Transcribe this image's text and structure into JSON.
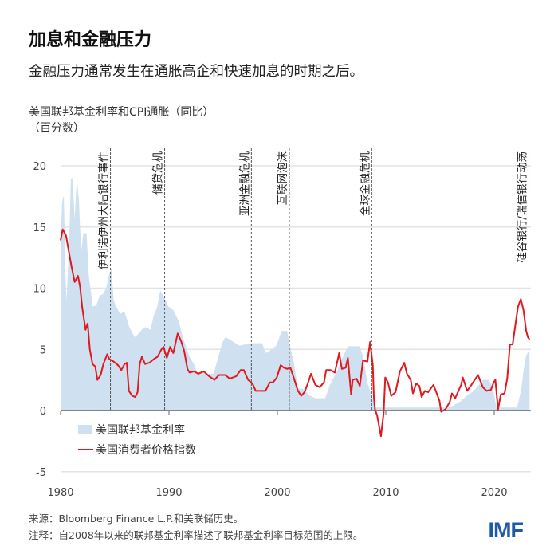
{
  "header": {
    "title": "加息和金融压力",
    "subtitle": "金融压力通常发生在通胀高企和快速加息的时期之后。"
  },
  "footer": {
    "source": "来源：Bloomberg Finance L.P.和美联储历史。",
    "note": "注释：自2008年以来的联邦基金利率描述了联邦基金利率目标范围的上限。",
    "logo": "IMF"
  },
  "chart_data": {
    "type": "area+line",
    "ylabel": "美国联邦基金利率和CPI通胀（同比）",
    "yunit": "（百分数）",
    "xlim": [
      1980,
      2023.3
    ],
    "ylim": [
      -5,
      20
    ],
    "xticks": [
      "1980",
      "1990",
      "2000",
      "2010",
      "2020"
    ],
    "yticks": [
      "20",
      "15",
      "10",
      "5",
      "0",
      "-5"
    ],
    "grid": true,
    "legend_position": "bottom-left",
    "colors": {
      "fed_funds": "#cfe1f0",
      "cpi": "#e0191f"
    },
    "series": [
      {
        "name": "美国联邦基金利率",
        "kind": "area",
        "points": [
          [
            1980.0,
            14
          ],
          [
            1980.15,
            17
          ],
          [
            1980.3,
            17.6
          ],
          [
            1980.45,
            11
          ],
          [
            1980.55,
            9
          ],
          [
            1980.8,
            14
          ],
          [
            1980.95,
            18.9
          ],
          [
            1981.1,
            19
          ],
          [
            1981.3,
            15.7
          ],
          [
            1981.5,
            19.1
          ],
          [
            1981.7,
            17
          ],
          [
            1981.9,
            13
          ],
          [
            1982.1,
            14.5
          ],
          [
            1982.4,
            14.5
          ],
          [
            1982.6,
            11
          ],
          [
            1982.8,
            9.7
          ],
          [
            1982.95,
            8.5
          ],
          [
            1983.3,
            8.6
          ],
          [
            1983.6,
            9.4
          ],
          [
            1983.9,
            9.5
          ],
          [
            1984.2,
            10
          ],
          [
            1984.5,
            11.2
          ],
          [
            1984.7,
            11.6
          ],
          [
            1984.9,
            9
          ],
          [
            1985.1,
            8.5
          ],
          [
            1985.5,
            7.9
          ],
          [
            1985.9,
            8.1
          ],
          [
            1986.3,
            6.9
          ],
          [
            1986.7,
            6.2
          ],
          [
            1986.9,
            6
          ],
          [
            1987.3,
            6.4
          ],
          [
            1987.7,
            6.8
          ],
          [
            1987.9,
            6.8
          ],
          [
            1988.3,
            6.6
          ],
          [
            1988.6,
            7.8
          ],
          [
            1988.9,
            8.4
          ],
          [
            1989.2,
            9.8
          ],
          [
            1989.4,
            9.5
          ],
          [
            1989.7,
            9
          ],
          [
            1989.95,
            8.5
          ],
          [
            1990.4,
            8.2
          ],
          [
            1990.9,
            7.3
          ],
          [
            1991.3,
            5.9
          ],
          [
            1991.9,
            4.4
          ],
          [
            1992.3,
            3.8
          ],
          [
            1992.6,
            3.1
          ],
          [
            1993.5,
            3
          ],
          [
            1994.1,
            3
          ],
          [
            1994.5,
            4.2
          ],
          [
            1994.9,
            5.5
          ],
          [
            1995.2,
            6
          ],
          [
            1995.6,
            5.8
          ],
          [
            1996.5,
            5.3
          ],
          [
            1997.5,
            5.5
          ],
          [
            1998.6,
            5.5
          ],
          [
            1998.9,
            4.7
          ],
          [
            1999.5,
            5
          ],
          [
            1999.9,
            5.3
          ],
          [
            2000.4,
            6.5
          ],
          [
            2000.9,
            6.5
          ],
          [
            2001.1,
            5.5
          ],
          [
            2001.5,
            4
          ],
          [
            2001.9,
            1.8
          ],
          [
            2002.5,
            1.75
          ],
          [
            2002.9,
            1.25
          ],
          [
            2003.5,
            1
          ],
          [
            2004.4,
            1
          ],
          [
            2004.9,
            2.2
          ],
          [
            2005.5,
            3.2
          ],
          [
            2005.95,
            4.2
          ],
          [
            2006.5,
            5.25
          ],
          [
            2007.6,
            5.25
          ],
          [
            2007.95,
            4.25
          ],
          [
            2008.3,
            2.25
          ],
          [
            2008.8,
            1
          ],
          [
            2008.95,
            0.25
          ],
          [
            2015.9,
            0.25
          ],
          [
            2016.9,
            0.75
          ],
          [
            2017.5,
            1.25
          ],
          [
            2017.95,
            1.5
          ],
          [
            2018.5,
            2
          ],
          [
            2018.95,
            2.5
          ],
          [
            2019.5,
            2.5
          ],
          [
            2019.9,
            1.75
          ],
          [
            2020.2,
            0.25
          ],
          [
            2022.1,
            0.25
          ],
          [
            2022.3,
            1
          ],
          [
            2022.5,
            1.75
          ],
          [
            2022.7,
            3.25
          ],
          [
            2022.95,
            4.5
          ],
          [
            2023.1,
            4.75
          ],
          [
            2023.25,
            5
          ]
        ]
      },
      {
        "name": "美国消费者价格指数",
        "kind": "line",
        "points": [
          [
            1980.0,
            13.9
          ],
          [
            1980.2,
            14.8
          ],
          [
            1980.5,
            14.3
          ],
          [
            1980.8,
            12.8
          ],
          [
            1981.0,
            11.8
          ],
          [
            1981.3,
            10.5
          ],
          [
            1981.6,
            11
          ],
          [
            1981.8,
            10.1
          ],
          [
            1982.0,
            8.4
          ],
          [
            1982.3,
            6.6
          ],
          [
            1982.5,
            7.1
          ],
          [
            1982.7,
            5
          ],
          [
            1982.95,
            3.8
          ],
          [
            1983.2,
            3.6
          ],
          [
            1983.4,
            2.5
          ],
          [
            1983.7,
            2.9
          ],
          [
            1983.95,
            3.8
          ],
          [
            1984.3,
            4.6
          ],
          [
            1984.5,
            4.2
          ],
          [
            1984.9,
            4
          ],
          [
            1985.3,
            3.7
          ],
          [
            1985.6,
            3.3
          ],
          [
            1985.9,
            3.8
          ],
          [
            1986.1,
            3.9
          ],
          [
            1986.3,
            1.6
          ],
          [
            1986.6,
            1.2
          ],
          [
            1986.9,
            1.1
          ],
          [
            1987.1,
            1.5
          ],
          [
            1987.3,
            3.8
          ],
          [
            1987.5,
            4.4
          ],
          [
            1987.8,
            3.8
          ],
          [
            1988.2,
            3.9
          ],
          [
            1988.6,
            4.2
          ],
          [
            1988.95,
            4.4
          ],
          [
            1989.3,
            5
          ],
          [
            1989.5,
            5.2
          ],
          [
            1989.8,
            4.3
          ],
          [
            1990.1,
            5.2
          ],
          [
            1990.4,
            4.7
          ],
          [
            1990.8,
            6.3
          ],
          [
            1991.1,
            5.7
          ],
          [
            1991.4,
            4.9
          ],
          [
            1991.7,
            3.4
          ],
          [
            1991.9,
            3.1
          ],
          [
            1992.3,
            3.2
          ],
          [
            1992.7,
            3
          ],
          [
            1993.2,
            3.2
          ],
          [
            1993.7,
            2.8
          ],
          [
            1994.2,
            2.5
          ],
          [
            1994.6,
            2.9
          ],
          [
            1995.2,
            2.9
          ],
          [
            1995.6,
            2.6
          ],
          [
            1996.2,
            2.8
          ],
          [
            1996.6,
            3.3
          ],
          [
            1996.9,
            3.3
          ],
          [
            1997.3,
            2.5
          ],
          [
            1997.7,
            2.2
          ],
          [
            1998.0,
            1.6
          ],
          [
            1998.5,
            1.6
          ],
          [
            1998.9,
            1.6
          ],
          [
            1999.3,
            2.3
          ],
          [
            1999.6,
            2.3
          ],
          [
            1999.95,
            2.7
          ],
          [
            2000.3,
            3.7
          ],
          [
            2000.6,
            3.5
          ],
          [
            2000.9,
            3.4
          ],
          [
            2001.2,
            3.5
          ],
          [
            2001.5,
            2.7
          ],
          [
            2001.9,
            1.6
          ],
          [
            2002.2,
            1.2
          ],
          [
            2002.5,
            1.5
          ],
          [
            2002.8,
            2.2
          ],
          [
            2003.1,
            3
          ],
          [
            2003.5,
            2.1
          ],
          [
            2003.9,
            1.9
          ],
          [
            2004.3,
            2.3
          ],
          [
            2004.5,
            3.3
          ],
          [
            2004.9,
            3.3
          ],
          [
            2005.3,
            3.1
          ],
          [
            2005.7,
            4.7
          ],
          [
            2005.95,
            3.4
          ],
          [
            2006.3,
            3.5
          ],
          [
            2006.5,
            4.3
          ],
          [
            2006.8,
            1.3
          ],
          [
            2006.95,
            2.5
          ],
          [
            2007.3,
            2.6
          ],
          [
            2007.6,
            2
          ],
          [
            2007.9,
            4.1
          ],
          [
            2008.3,
            4
          ],
          [
            2008.55,
            5.6
          ],
          [
            2008.8,
            3.7
          ],
          [
            2008.9,
            1.1
          ],
          [
            2009.0,
            0.1
          ],
          [
            2009.2,
            -0.4
          ],
          [
            2009.55,
            -2.1
          ],
          [
            2009.8,
            -0.2
          ],
          [
            2009.95,
            2.7
          ],
          [
            2010.2,
            2.3
          ],
          [
            2010.5,
            1.2
          ],
          [
            2010.9,
            1.5
          ],
          [
            2011.3,
            3.2
          ],
          [
            2011.7,
            3.9
          ],
          [
            2011.95,
            3
          ],
          [
            2012.3,
            2.5
          ],
          [
            2012.5,
            1.4
          ],
          [
            2012.8,
            2.2
          ],
          [
            2013.1,
            2
          ],
          [
            2013.3,
            1.1
          ],
          [
            2013.6,
            1.6
          ],
          [
            2013.9,
            1.5
          ],
          [
            2014.4,
            2.1
          ],
          [
            2014.95,
            0.8
          ],
          [
            2015.1,
            -0.1
          ],
          [
            2015.5,
            0.1
          ],
          [
            2015.9,
            0.7
          ],
          [
            2016.1,
            1.4
          ],
          [
            2016.4,
            1
          ],
          [
            2016.95,
            2.1
          ],
          [
            2017.1,
            2.7
          ],
          [
            2017.5,
            1.6
          ],
          [
            2017.9,
            2.1
          ],
          [
            2018.5,
            2.9
          ],
          [
            2018.95,
            1.9
          ],
          [
            2019.3,
            1.6
          ],
          [
            2019.7,
            1.7
          ],
          [
            2019.95,
            2.3
          ],
          [
            2020.1,
            2.5
          ],
          [
            2020.35,
            0.1
          ],
          [
            2020.6,
            1.3
          ],
          [
            2020.95,
            1.4
          ],
          [
            2021.2,
            2.6
          ],
          [
            2021.45,
            5.4
          ],
          [
            2021.7,
            5.4
          ],
          [
            2021.95,
            7
          ],
          [
            2022.2,
            8.5
          ],
          [
            2022.45,
            9.1
          ],
          [
            2022.7,
            8.2
          ],
          [
            2022.95,
            6.5
          ],
          [
            2023.1,
            6
          ],
          [
            2023.25,
            5.8
          ]
        ]
      }
    ],
    "events": [
      {
        "label": "伊利诺伊州大陆银行事件",
        "x": 1984.6
      },
      {
        "label": "储贷危机",
        "x": 1989.6
      },
      {
        "label": "亚洲金融危机",
        "x": 1997.6
      },
      {
        "label": "互联网泡沫",
        "x": 2001.1
      },
      {
        "label": "全球金融危机",
        "x": 2008.7
      },
      {
        "label": "硅谷银行/瑞信银行动荡",
        "x": 2023.2
      }
    ]
  }
}
